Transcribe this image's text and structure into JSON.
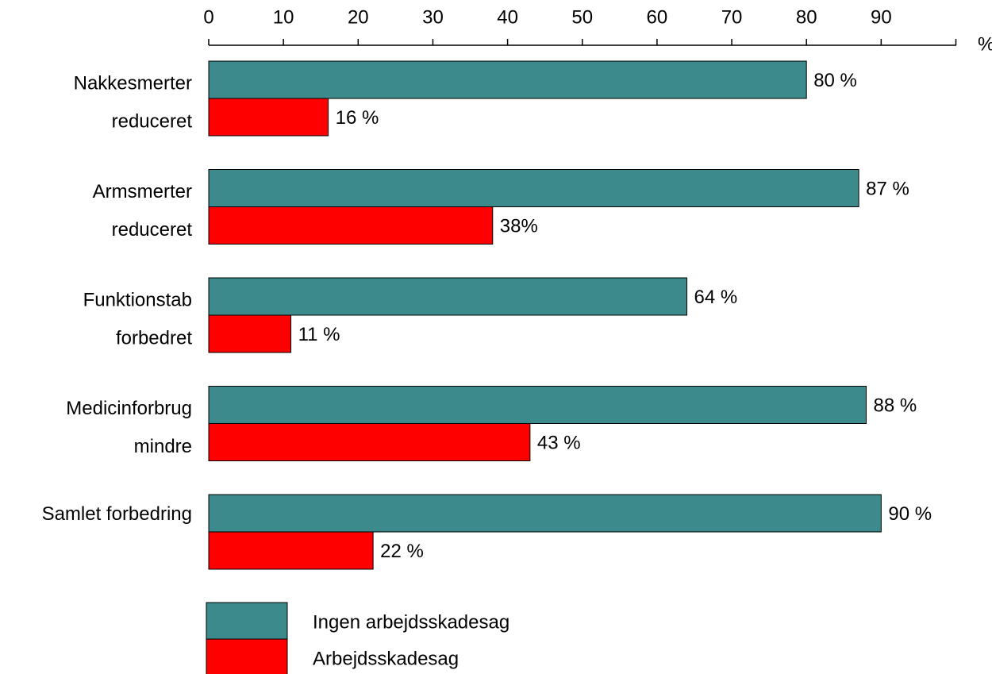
{
  "chart_data": {
    "type": "bar",
    "orientation": "horizontal",
    "x_axis_position": "top",
    "x_unit_label": "%",
    "xlim": [
      0,
      100
    ],
    "x_ticks": [
      "0",
      "10",
      "20",
      "30",
      "40",
      "50",
      "60",
      "70",
      "80",
      "90"
    ],
    "categories": [
      [
        "Nakkesmerter",
        "reduceret"
      ],
      [
        "Armsmerter",
        "reduceret"
      ],
      [
        "Funktionstab",
        "forbedret"
      ],
      [
        "Medicinforbrug",
        "mindre"
      ],
      [
        "Samlet forbedring"
      ]
    ],
    "series": [
      {
        "name": "Ingen arbejdsskadesag",
        "color": "#3d8a8c",
        "values": [
          80,
          87,
          64,
          88,
          90
        ],
        "labels": [
          "80 %",
          "87 %",
          "64 %",
          "88 %",
          "90 %"
        ]
      },
      {
        "name": "Arbejdsskadesag",
        "color": "#ff0000",
        "values": [
          16,
          38,
          11,
          43,
          22
        ],
        "labels": [
          "16 %",
          "38%",
          "11 %",
          "43 %",
          "22 %"
        ]
      }
    ],
    "grid": false,
    "legend_position": "bottom-left"
  }
}
